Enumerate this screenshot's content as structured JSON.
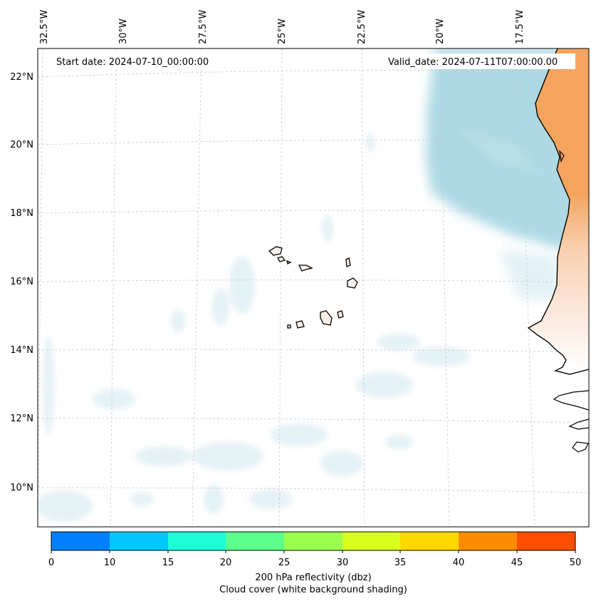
{
  "annotations": {
    "start_date": "Start date: 2024-07-10_00:00:00",
    "valid_date": "Valid_date: 2024-07-11T07:00:00.00"
  },
  "lon_labels": [
    "32.5°W",
    "30°W",
    "27.5°W",
    "25°W",
    "22.5°W",
    "20°W",
    "17.5°W"
  ],
  "lat_labels": [
    "22°N",
    "20°N",
    "18°N",
    "16°N",
    "14°N",
    "12°N",
    "10°N"
  ],
  "colorbar": {
    "ticks": [
      "0",
      "10",
      "15",
      "20",
      "25",
      "30",
      "35",
      "40",
      "45",
      "50"
    ],
    "colors": [
      "#0080ff",
      "#00c8ff",
      "#1effd8",
      "#5cff8c",
      "#9cff50",
      "#d8ff1e",
      "#ffd800",
      "#ff8c00",
      "#ff4e00"
    ],
    "label_line1": "200 hPa reflectivity (dbz)",
    "label_line2": "Cloud cover (white background shading)"
  },
  "colors": {
    "cloud": "#a9d7e3",
    "land_dry": "#f4a45e",
    "coast": "#000000",
    "grid": "#c8c8c8"
  }
}
